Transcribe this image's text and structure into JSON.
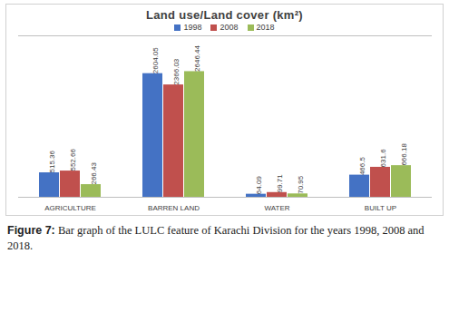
{
  "chart_data": {
    "type": "bar",
    "title": "Land use/Land cover (km²)",
    "categories": [
      "AGRICULTURE",
      "BARREN LAND",
      "WATER",
      "BUILT UP"
    ],
    "series": [
      {
        "name": "1998",
        "color": "#4472c4",
        "values": [
          515.36,
          2604.05,
          64.09,
          466.5
        ]
      },
      {
        "name": "2008",
        "color": "#c0504d",
        "values": [
          552.66,
          2366.03,
          99.71,
          631.6
        ]
      },
      {
        "name": "2018",
        "color": "#9bbb59",
        "values": [
          266.43,
          2646.44,
          70.95,
          666.18
        ]
      }
    ],
    "ylim": [
      0,
      3400
    ],
    "data_labels": true,
    "tick_labels": "x",
    "grid": false,
    "legend": "top",
    "caption": {
      "label": "Figure 7:",
      "text": "Bar graph of the LULC feature of Karachi Division for the years 1998, 2008 and 2018."
    }
  }
}
